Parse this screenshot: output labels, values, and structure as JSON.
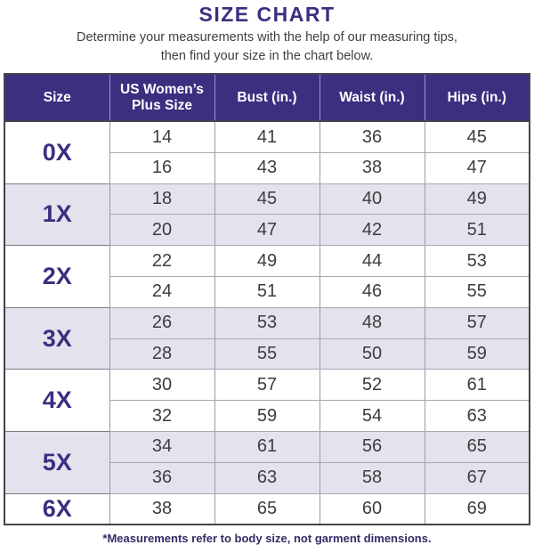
{
  "page": {
    "title": "SIZE CHART",
    "subtitle_line1": "Determine your measurements with the help of our measuring tips,",
    "subtitle_line2": "then find your size in the chart below.",
    "footnote": "*Measurements refer to body size, not garment dimensions."
  },
  "colors": {
    "indigo": "#3b2f80",
    "header_background": "#3b2f80",
    "header_text": "#ffffff",
    "row_alternate_background": "#e5e2ee",
    "body_text": "#3d3d3d",
    "footnote_text": "#332c66",
    "border_dark": "#44434d",
    "border_light": "#a9a8b2"
  },
  "chart_data": {
    "type": "table",
    "title": "SIZE CHART",
    "columns": [
      "Size",
      "US Women’s Plus Size",
      "Bust (in.)",
      "Waist (in.)",
      "Hips (in.)"
    ],
    "groups": [
      {
        "size": "0X",
        "shaded": false,
        "rows": [
          [
            14,
            41,
            36,
            45
          ],
          [
            16,
            43,
            38,
            47
          ]
        ]
      },
      {
        "size": "1X",
        "shaded": true,
        "rows": [
          [
            18,
            45,
            40,
            49
          ],
          [
            20,
            47,
            42,
            51
          ]
        ]
      },
      {
        "size": "2X",
        "shaded": false,
        "rows": [
          [
            22,
            49,
            44,
            53
          ],
          [
            24,
            51,
            46,
            55
          ]
        ]
      },
      {
        "size": "3X",
        "shaded": true,
        "rows": [
          [
            26,
            53,
            48,
            57
          ],
          [
            28,
            55,
            50,
            59
          ]
        ]
      },
      {
        "size": "4X",
        "shaded": false,
        "rows": [
          [
            30,
            57,
            52,
            61
          ],
          [
            32,
            59,
            54,
            63
          ]
        ]
      },
      {
        "size": "5X",
        "shaded": true,
        "rows": [
          [
            34,
            61,
            56,
            65
          ],
          [
            36,
            63,
            58,
            67
          ]
        ]
      },
      {
        "size": "6X",
        "shaded": false,
        "rows": [
          [
            38,
            65,
            60,
            69
          ]
        ]
      }
    ],
    "layout_hints": {
      "size_column_merged_per_group": true,
      "alternating_group_shading": true,
      "header_style": "dark-indigo-with-white-text"
    }
  }
}
